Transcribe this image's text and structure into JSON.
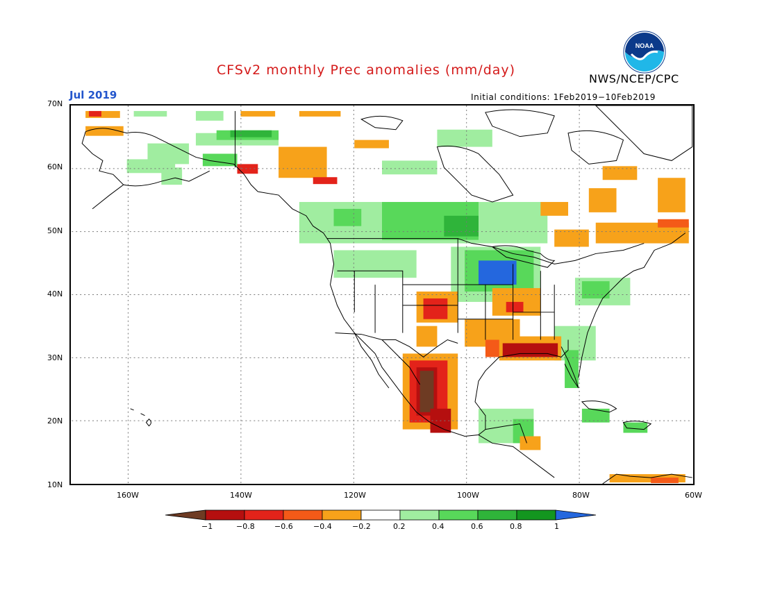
{
  "header": {
    "title": "CFSv2 monthly Prec anomalies (mm/day)",
    "org": "NWS/NCEP/CPC",
    "logo_text": "NOAA",
    "month": "Jul 2019",
    "init_conditions": "Initial conditions: 1Feb2019−10Feb2019"
  },
  "map": {
    "lat_labels": [
      "70N",
      "60N",
      "50N",
      "40N",
      "30N",
      "20N",
      "10N"
    ],
    "lon_labels": [
      "160W",
      "140W",
      "120W",
      "100W",
      "80W",
      "60W"
    ],
    "extent": {
      "lon": [
        -170,
        -60
      ],
      "lat": [
        10,
        70
      ]
    }
  },
  "colorbar": {
    "labels": [
      "−1",
      "−0.8",
      "−0.6",
      "−0.4",
      "−0.2",
      "0.2",
      "0.4",
      "0.6",
      "0.8",
      "1"
    ],
    "colors": [
      "#6e3b23",
      "#b50f0f",
      "#e3231a",
      "#f45a18",
      "#f7a21a",
      "#ffffff",
      "#a0eda0",
      "#58d85a",
      "#2fb43a",
      "#13961f",
      "#2467de"
    ]
  }
}
